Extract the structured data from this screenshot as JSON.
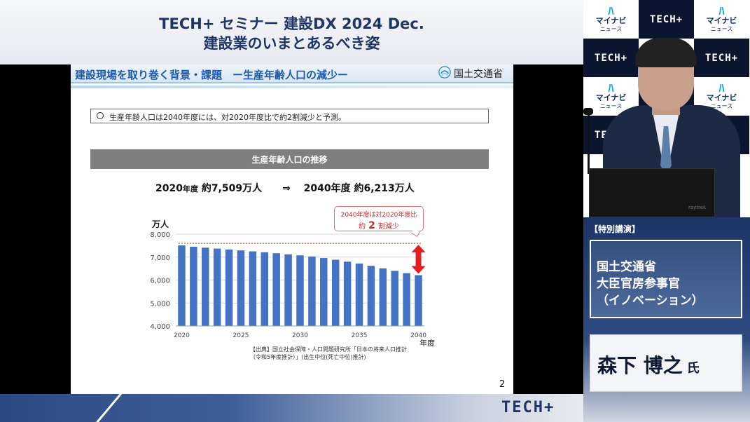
{
  "header": {
    "line1": "TECH+ セミナー 建設DX 2024 Dec.",
    "line2": "建設業のいまとあるべき姿"
  },
  "slide": {
    "title": "建設現場を取り巻く背景・課題　ー生産年齢人口の減少ー",
    "ministry": "国土交通省",
    "bullet": "生産年齢人口は2040年度には、対2020年度比で約2割減少と予測。",
    "band": "生産年齢人口の推移",
    "summary": {
      "left_year": "2020",
      "left_unit": "年度",
      "left_value": "約7,509万人",
      "arrow": "⇒",
      "right_year": "2040年度",
      "right_value": "約6,213万人"
    },
    "callout": {
      "line1": "2040年度は対2020年度比",
      "pre": "約",
      "big": "2",
      "post": "割減少"
    },
    "source": {
      "line1": "【出典】国立社会保障・人口問題研究所「日本の将来人口推計",
      "line2": "（令和5年度推計）」(出生中位(死亡中位)推計)"
    },
    "page_number": "2"
  },
  "chart_data": {
    "type": "bar",
    "ylabel": "万人",
    "xlabel": "年度",
    "ylim": [
      4000,
      8000
    ],
    "yticks": [
      "4,000",
      "5,000",
      "6,000",
      "7,000",
      "8,000"
    ],
    "x_tick_labels": [
      "2020",
      "2025",
      "2030",
      "2035",
      "2040"
    ],
    "categories": [
      2020,
      2021,
      2022,
      2023,
      2024,
      2025,
      2026,
      2027,
      2028,
      2029,
      2030,
      2031,
      2032,
      2033,
      2034,
      2035,
      2036,
      2037,
      2038,
      2039,
      2040
    ],
    "values": [
      7509,
      7450,
      7410,
      7370,
      7330,
      7290,
      7250,
      7210,
      7170,
      7120,
      7075,
      7025,
      6960,
      6885,
      6800,
      6720,
      6620,
      6510,
      6400,
      6300,
      6213
    ],
    "reference_line": 7600,
    "bar_color": "#4472c4",
    "reference_color": "#e05030",
    "arrow_color": "#e02020"
  },
  "right_panel": {
    "tile_labels": {
      "mynavi_top": "マイナビ",
      "mynavi_bottom": "ニュース",
      "tech": "TECH+"
    },
    "laptop_brand": "raytrek",
    "special": "【特別講演】",
    "role_line1": "国土交通省",
    "role_line2": "大臣官房参事官",
    "role_line3": "（イノベーション）",
    "name": "森下 博之",
    "honorific": "氏"
  },
  "footer": {
    "tech_logo": "TECH+"
  }
}
